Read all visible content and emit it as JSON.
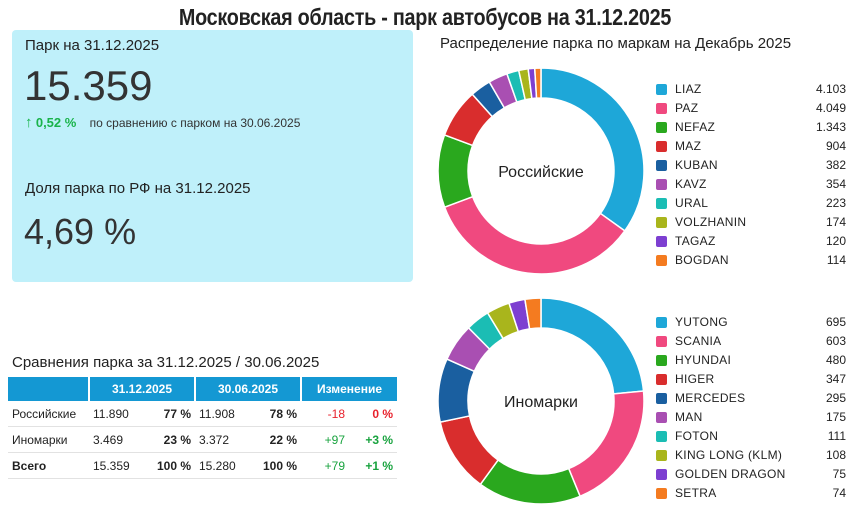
{
  "title": "Московская область - парк автобусов на 31.12.2025",
  "kpi": {
    "park_label": "Парк на 31.12.2025",
    "park_value": "15.359",
    "change_arrow": "↑",
    "change_pct": "0,52 %",
    "change_text": "по сравнению с парком на 30.06.2025",
    "share_label": "Доля парка по РФ на 31.12.2025",
    "share_value": "4,69 %"
  },
  "table": {
    "title": "Сравнения парка за 31.12.2025 / 30.06.2025",
    "headers": [
      "31.12.2025",
      "30.06.2025",
      "Изменение"
    ],
    "rows": [
      {
        "label": "Российские",
        "v1": "11.890",
        "p1": "77 %",
        "v2": "11.908",
        "p2": "78 %",
        "dv": "-18",
        "dp": "0 %"
      },
      {
        "label": "Иномарки",
        "v1": "3.469",
        "p1": "23 %",
        "v2": "3.372",
        "p2": "22 %",
        "dv": "+97",
        "dp": "+3 %"
      },
      {
        "label": "Всего",
        "v1": "15.359",
        "p1": "100 %",
        "v2": "15.280",
        "p2": "100 %",
        "dv": "+79",
        "dp": "+1 %"
      }
    ]
  },
  "colors": {
    "kpi_bg": "#bff0fa",
    "header_bg": "#1498d3",
    "positive": "#19a33f",
    "negative": "#e8212c"
  },
  "chart_data": [
    {
      "type": "pie",
      "title": "Распределение парка по маркам на Декабрь 2025",
      "center_label": "Российские",
      "categories": [
        "LIAZ",
        "PAZ",
        "NEFAZ",
        "MAZ",
        "KUBAN",
        "KAVZ",
        "URAL",
        "VOLZHANIN",
        "TAGAZ",
        "BOGDAN"
      ],
      "values": [
        4103,
        4049,
        1343,
        904,
        382,
        354,
        223,
        174,
        120,
        114
      ],
      "labels": [
        "4.103",
        "4.049",
        "1.343",
        "904",
        "382",
        "354",
        "223",
        "174",
        "120",
        "114"
      ],
      "colors": [
        "#1ea7d8",
        "#f0497f",
        "#2aa81e",
        "#d92d2d",
        "#1a5fa0",
        "#a94fb2",
        "#1bbdb4",
        "#a9b51c",
        "#7d3fd1",
        "#f47b20"
      ]
    },
    {
      "type": "pie",
      "title": "",
      "center_label": "Иномарки",
      "categories": [
        "YUTONG",
        "SCANIA",
        "HYUNDAI",
        "HIGER",
        "MERCEDES",
        "MAN",
        "FOTON",
        "KING LONG (KLM)",
        "GOLDEN DRAGON",
        "SETRA"
      ],
      "values": [
        695,
        603,
        480,
        347,
        295,
        175,
        111,
        108,
        75,
        74
      ],
      "labels": [
        "695",
        "603",
        "480",
        "347",
        "295",
        "175",
        "111",
        "108",
        "75",
        "74"
      ],
      "colors": [
        "#1ea7d8",
        "#f0497f",
        "#2aa81e",
        "#d92d2d",
        "#1a5fa0",
        "#a94fb2",
        "#1bbdb4",
        "#a9b51c",
        "#7d3fd1",
        "#f47b20"
      ]
    }
  ]
}
